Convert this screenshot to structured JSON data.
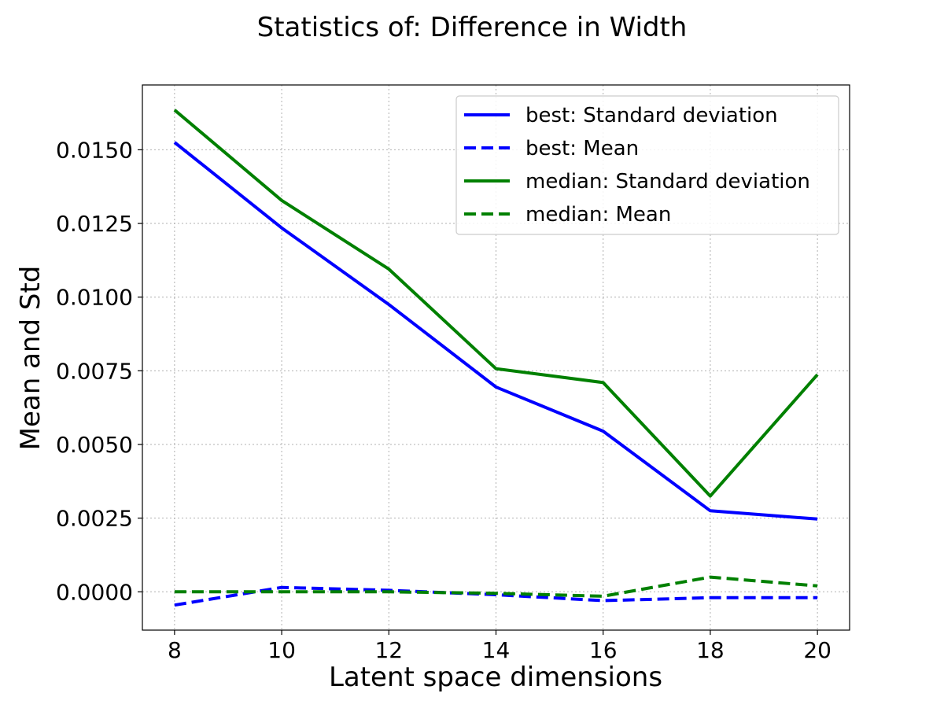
{
  "chart_data": {
    "type": "line",
    "title": "Statistics of: Difference in Width",
    "xlabel": "Latent space dimensions",
    "ylabel": "Mean and Std",
    "x": [
      8,
      10,
      12,
      14,
      16,
      18,
      20
    ],
    "xlim": [
      7.4,
      20.6
    ],
    "ylim": [
      -0.0013,
      0.0172
    ],
    "xticks": [
      "8",
      "10",
      "12",
      "14",
      "16",
      "18",
      "20"
    ],
    "yticks": [
      "0.0000",
      "0.0025",
      "0.0050",
      "0.0075",
      "0.0100",
      "0.0125",
      "0.0150"
    ],
    "grid": true,
    "legend_position": "upper right",
    "series": [
      {
        "name": "best: Standard deviation",
        "color": "#0000ff",
        "style": "solid",
        "values": [
          0.01525,
          0.01235,
          0.00975,
          0.00695,
          0.00545,
          0.00275,
          0.00247
        ]
      },
      {
        "name": "best: Mean",
        "color": "#0000ff",
        "style": "dashed",
        "values": [
          -0.00045,
          0.00015,
          5e-05,
          -0.0001,
          -0.0003,
          -0.0002,
          -0.0002
        ]
      },
      {
        "name": "median: Standard deviation",
        "color": "#008000",
        "style": "solid",
        "values": [
          0.01635,
          0.01328,
          0.01095,
          0.00757,
          0.0071,
          0.00325,
          0.00737
        ]
      },
      {
        "name": "median: Mean",
        "color": "#008000",
        "style": "dashed",
        "values": [
          0.0,
          0.0,
          0.0,
          -5e-05,
          -0.00015,
          0.0005,
          0.0002
        ]
      }
    ]
  }
}
